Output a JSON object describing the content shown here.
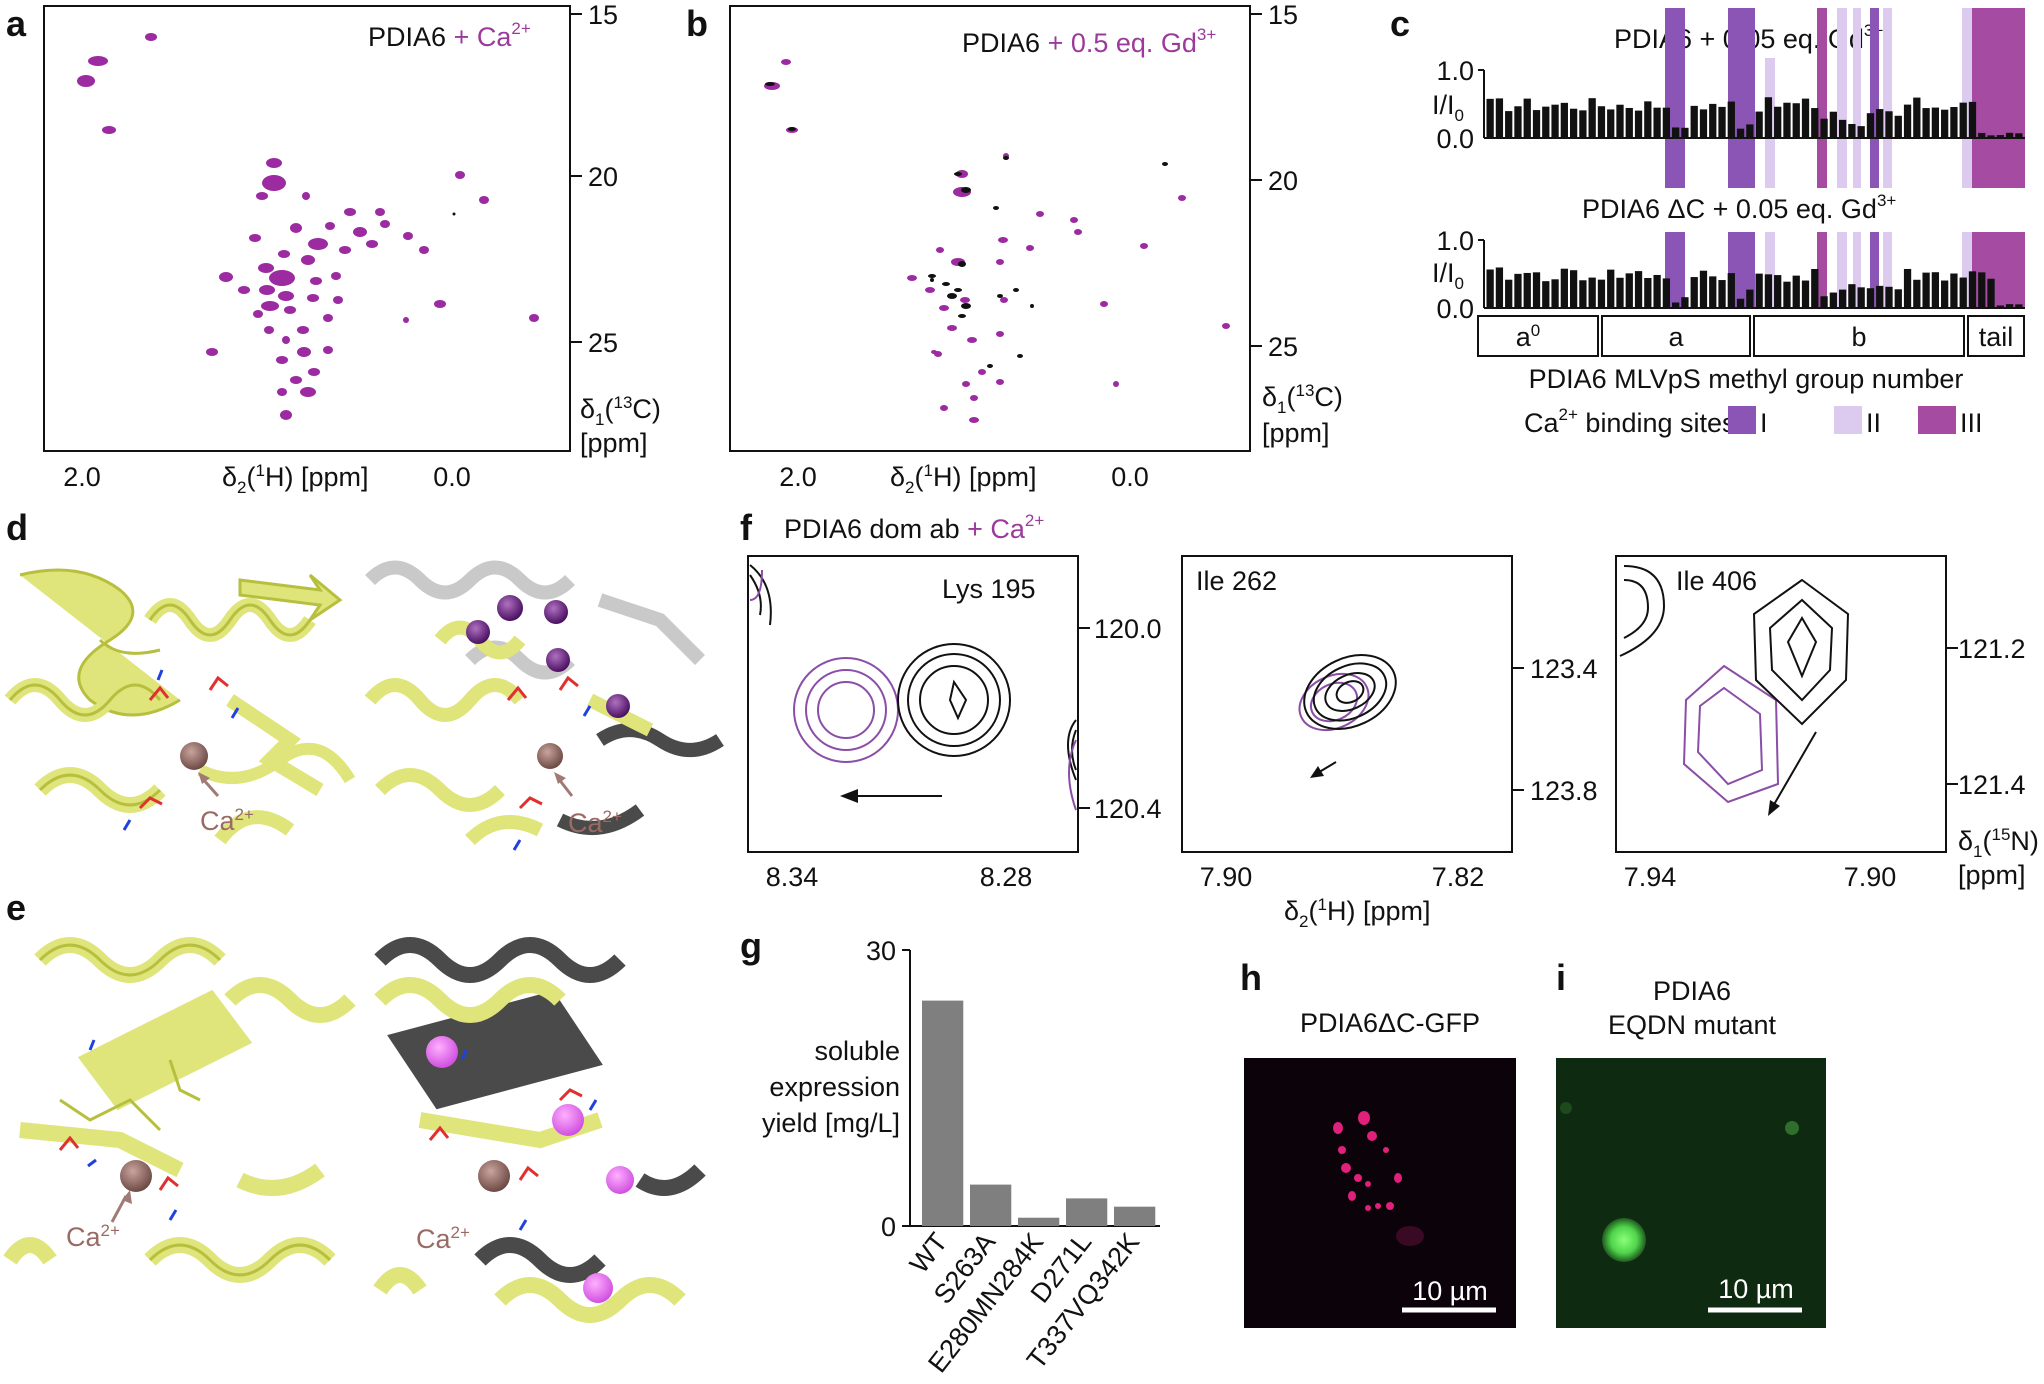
{
  "panels": {
    "a": {
      "letter": "a",
      "title_protein": "PDIA6",
      "title_additive": "+ Ca",
      "title_sup": "2+",
      "x_ticks": [
        "2.0",
        "0.0"
      ],
      "y_ticks": [
        "15",
        "20",
        "25"
      ],
      "xlabel_pre": "δ",
      "xlabel_sub": "2",
      "xlabel_sup": "1",
      "xlabel_post": "H) [ppm]",
      "ylabel_pre": "δ",
      "ylabel_sub": "1",
      "ylabel_sup": "13",
      "ylabel_post": "C)",
      "ylabel_unit": "[ppm]"
    },
    "b": {
      "letter": "b",
      "title_protein": "PDIA6",
      "title_additive": "+ 0.5 eq. Gd",
      "title_sup": "3+",
      "x_ticks": [
        "2.0",
        "0.0"
      ],
      "y_ticks": [
        "15",
        "20",
        "25"
      ],
      "xlabel_pre": "δ",
      "xlabel_sub": "2",
      "xlabel_sup": "1",
      "xlabel_post": "H) [ppm]",
      "ylabel_pre": "δ",
      "ylabel_sub": "1",
      "ylabel_sup": "13",
      "ylabel_post": "C)",
      "ylabel_unit": "[ppm]"
    },
    "c": {
      "letter": "c",
      "top_title": "PDIA6 + 0.05 eq. Gd",
      "bottom_title": "PDIA6 ΔC + 0.05 eq. Gd",
      "title_sup": "3+",
      "y_ticks": [
        "1.0",
        "0.0"
      ],
      "ylabel": "I/I",
      "ylabel_sub": "0",
      "domains": [
        "a",
        "a",
        "b",
        "tail"
      ],
      "domain_a0_sup": "0",
      "xlabel": "PDIA6 MLVpS methyl group number",
      "legend_prefix": "Ca",
      "legend_sup": "2+",
      "legend_text": "binding sites",
      "legend_items": [
        "I",
        "II",
        "III"
      ],
      "site_colors": {
        "I": "#8a55b5",
        "II": "#dccbee",
        "III": "#a54ba1"
      }
    },
    "d": {
      "letter": "d",
      "ca_label": "Ca",
      "ca_sup": "2+"
    },
    "e": {
      "letter": "e",
      "ca_label": "Ca",
      "ca_sup": "2+"
    },
    "f": {
      "letter": "f",
      "title": "PDIA6 dom ab",
      "title_additive": "+ Ca",
      "title_sup": "2+",
      "insets": [
        {
          "residue": "Lys 195",
          "x_ticks": [
            "8.34",
            "8.28"
          ],
          "y_ticks": [
            "120.0",
            "120.4"
          ]
        },
        {
          "residue": "Ile 262",
          "x_ticks": [
            "7.90",
            "7.82"
          ],
          "y_ticks": [
            "123.4",
            "123.8"
          ]
        },
        {
          "residue": "Ile 406",
          "x_ticks": [
            "7.94",
            "7.90"
          ],
          "y_ticks": [
            "121.2",
            "121.4"
          ]
        }
      ],
      "xlabel_pre": "δ",
      "xlabel_sub": "2",
      "xlabel_sup": "1",
      "xlabel_post": "H) [ppm]",
      "ylabel_pre": "δ",
      "ylabel_sub": "1",
      "ylabel_sup": "15",
      "ylabel_post": "N)",
      "ylabel_unit": "[ppm]"
    },
    "h": {
      "letter": "h",
      "title": "PDIA6ΔC-GFP",
      "scale": "10 µm"
    },
    "i": {
      "letter": "i",
      "title_line1": "PDIA6",
      "title_line2": "EQDN mutant",
      "scale": "10 µm"
    }
  },
  "chart_data": {
    "type": "bar",
    "panel_letter": "g",
    "categories": [
      "WT",
      "S263A",
      "E280MN284K",
      "D271L",
      "T337VQ342K"
    ],
    "values": [
      24.5,
      4.5,
      0.9,
      3.0,
      2.1
    ],
    "ylim": [
      0,
      30
    ],
    "y_ticks": [
      "30",
      "0"
    ],
    "ylabel_lines": [
      "soluble",
      "expression",
      "yield [mg/L]"
    ],
    "bar_color": "#7f7f7f"
  }
}
